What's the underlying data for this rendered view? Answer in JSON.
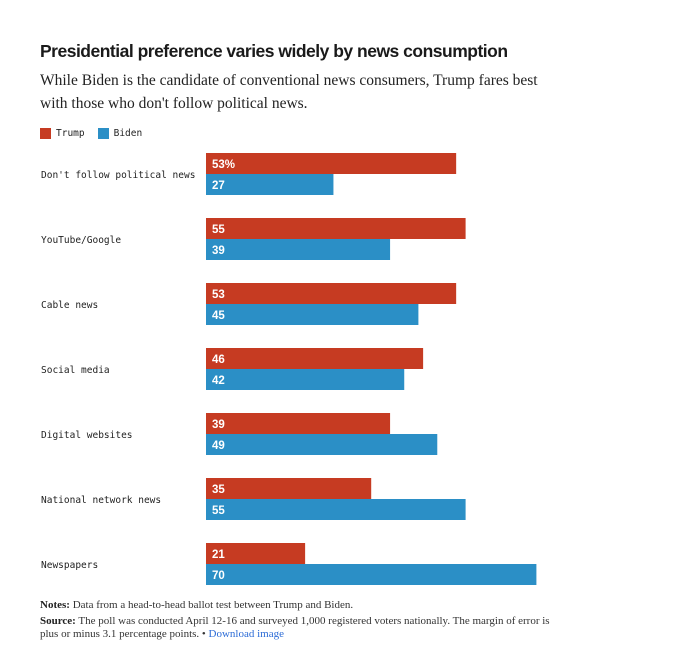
{
  "chart_data": {
    "type": "bar",
    "orientation": "horizontal",
    "title": "Presidential preference varies widely by news consumption",
    "subtitle": "While Biden is the candidate of conventional news consumers, Trump fares best with those who don't follow political news.",
    "categories": [
      "Don't follow political news",
      "YouTube/Google",
      "Cable news",
      "Social media",
      "Digital websites",
      "National network news",
      "Newspapers"
    ],
    "series": [
      {
        "name": "Trump",
        "color": "#c63b22",
        "values": [
          53,
          55,
          53,
          46,
          39,
          35,
          21
        ],
        "labels": [
          "53%",
          "55",
          "53",
          "46",
          "39",
          "35",
          "21"
        ]
      },
      {
        "name": "Biden",
        "color": "#2b8fc6",
        "values": [
          27,
          39,
          45,
          42,
          49,
          55,
          70
        ],
        "labels": [
          "27",
          "39",
          "45",
          "42",
          "49",
          "55",
          "70"
        ]
      }
    ],
    "xlim": [
      0,
      70
    ],
    "legend": "top-left"
  },
  "notes": {
    "notes_label": "Notes:",
    "notes_text": "Data from a head-to-head ballot test between Trump and Biden.",
    "source_label": "Source:",
    "source_text": "The poll was conducted April 12-16 and surveyed 1,000 registered voters nationally. The margin of error is plus or minus 3.1 percentage points. •",
    "download_label": "Download image"
  }
}
